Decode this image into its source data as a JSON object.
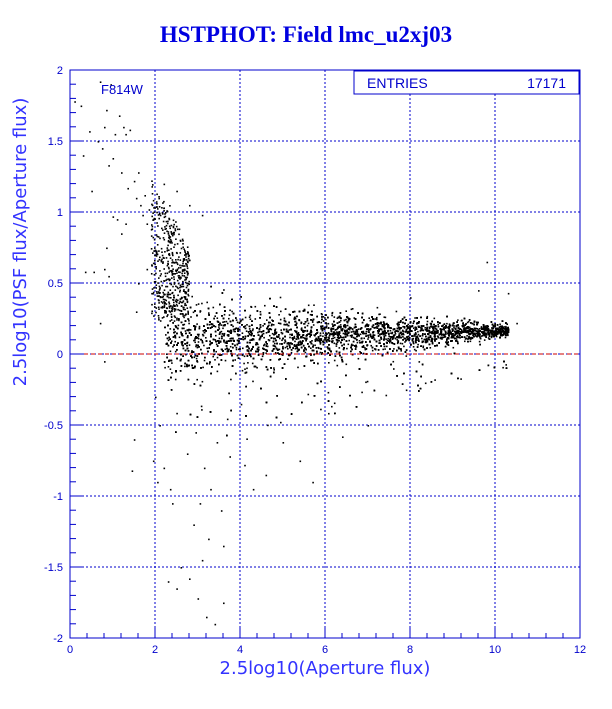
{
  "title": "HSTPHOT: Field lmc_u2xj03",
  "colors": {
    "axis": "#0000cc",
    "grid": "#0000cc",
    "points": "#000000",
    "reference_line": "#cc0000"
  },
  "chart_data": {
    "type": "scatter",
    "title": "HSTPHOT: Field lmc_u2xj03",
    "xlabel": "2.5log10(Aperture flux)",
    "ylabel": "2.5log10(PSF flux/Aperture flux)",
    "xlim": [
      0,
      12
    ],
    "ylim": [
      -2,
      2
    ],
    "x_ticks": [
      "0",
      "2",
      "4",
      "6",
      "8",
      "10",
      "12"
    ],
    "y_ticks": [
      "-2",
      "-1.5",
      "-1",
      "-0.5",
      "0",
      "0.5",
      "1",
      "1.5",
      "2"
    ],
    "grid": true,
    "reference_line_y": 0,
    "annotation": "F814W",
    "stats_box": {
      "label": "ENTRIES",
      "value": "17171"
    },
    "points": [
      [
        0.1,
        1.78
      ],
      [
        0.25,
        1.75
      ],
      [
        0.45,
        1.57
      ],
      [
        0.7,
        1.92
      ],
      [
        0.85,
        1.72
      ],
      [
        0.95,
        1.9
      ],
      [
        0.75,
        1.45
      ],
      [
        0.8,
        1.6
      ],
      [
        1.0,
        1.38
      ],
      [
        1.05,
        1.55
      ],
      [
        1.15,
        1.68
      ],
      [
        1.25,
        1.6
      ],
      [
        1.3,
        1.55
      ],
      [
        1.4,
        1.58
      ],
      [
        0.9,
        1.33
      ],
      [
        0.65,
        1.5
      ],
      [
        0.5,
        1.15
      ],
      [
        0.3,
        1.4
      ],
      [
        1.2,
        1.28
      ],
      [
        1.35,
        1.17
      ],
      [
        1.5,
        1.22
      ],
      [
        1.55,
        1.1
      ],
      [
        1.6,
        1.28
      ],
      [
        1.65,
        1.05
      ],
      [
        1.7,
        0.98
      ],
      [
        1.75,
        1.12
      ],
      [
        1.8,
        0.92
      ],
      [
        1.85,
        1.02
      ],
      [
        1.9,
        0.88
      ],
      [
        1.95,
        0.95
      ],
      [
        1.0,
        0.97
      ],
      [
        1.1,
        0.95
      ],
      [
        1.3,
        0.92
      ],
      [
        0.35,
        0.58
      ],
      [
        0.55,
        0.58
      ],
      [
        0.8,
        0.6
      ],
      [
        0.85,
        0.75
      ],
      [
        1.2,
        0.85
      ],
      [
        0.9,
        0.55
      ],
      [
        0.7,
        0.22
      ],
      [
        0.8,
        -0.05
      ],
      [
        2.0,
        -0.3
      ],
      [
        2.1,
        -0.5
      ],
      [
        1.95,
        -0.75
      ],
      [
        2.2,
        -0.8
      ],
      [
        2.35,
        -0.95
      ],
      [
        2.05,
        -0.9
      ],
      [
        2.4,
        -1.05
      ],
      [
        2.6,
        -1.5
      ],
      [
        2.5,
        -1.65
      ],
      [
        2.3,
        -1.6
      ],
      [
        2.8,
        -1.58
      ],
      [
        3.1,
        -1.45
      ],
      [
        3.25,
        -1.3
      ],
      [
        3.0,
        -1.72
      ],
      [
        3.2,
        -1.85
      ],
      [
        3.4,
        -1.9
      ],
      [
        3.6,
        -1.75
      ],
      [
        2.9,
        -1.2
      ],
      [
        3.05,
        -1.05
      ],
      [
        3.3,
        -0.95
      ],
      [
        3.55,
        -1.1
      ],
      [
        2.75,
        -0.7
      ],
      [
        2.95,
        -0.55
      ],
      [
        3.15,
        -0.8
      ],
      [
        3.45,
        -0.62
      ],
      [
        3.75,
        -0.72
      ],
      [
        4.1,
        -0.78
      ],
      [
        4.3,
        -0.95
      ],
      [
        4.6,
        -0.85
      ],
      [
        5.0,
        -0.62
      ],
      [
        5.4,
        -0.75
      ],
      [
        5.7,
        -0.9
      ],
      [
        6.4,
        -0.58
      ],
      [
        7.0,
        -0.5
      ],
      [
        3.6,
        -1.35
      ],
      [
        1.5,
        -0.6
      ],
      [
        1.45,
        -0.82
      ],
      [
        9.8,
        0.65
      ],
      [
        10.3,
        0.43
      ],
      [
        10.5,
        0.22
      ],
      [
        10.1,
        0.12
      ],
      [
        9.6,
        0.45
      ],
      [
        8.0,
        0.4
      ],
      [
        7.6,
        -0.1
      ],
      [
        7.9,
        -0.25
      ],
      [
        8.2,
        -0.05
      ],
      [
        9.0,
        0.05
      ],
      [
        2.2,
        1.2
      ],
      [
        2.5,
        1.15
      ],
      [
        2.8,
        1.05
      ],
      [
        3.1,
        0.98
      ],
      [
        2.0,
        0.7
      ],
      [
        1.8,
        0.6
      ],
      [
        1.6,
        0.5
      ],
      [
        1.55,
        0.3
      ]
    ]
  }
}
